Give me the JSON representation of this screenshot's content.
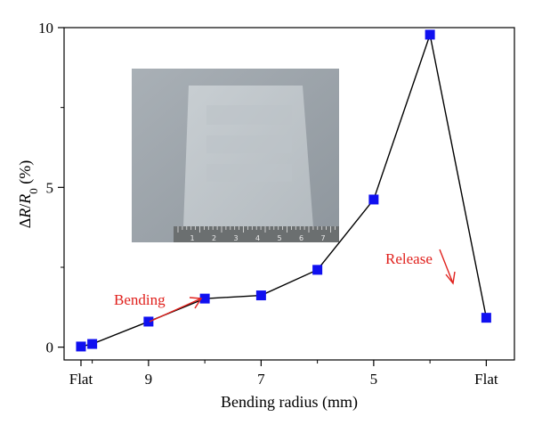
{
  "chart_data": {
    "type": "scatter",
    "xlabel": "Bending radius (mm)",
    "ylabel_parts": {
      "delta": "Δ",
      "r": "R",
      "slash": "/",
      "r0": "R",
      "sub": "0",
      "unit": " (%)"
    },
    "x_ticks": [
      {
        "x": 10.2,
        "label": "Flat"
      },
      {
        "x": 9,
        "label": "9"
      },
      {
        "x": 7,
        "label": "7"
      },
      {
        "x": 5,
        "label": "5"
      },
      {
        "x": 3,
        "label": "Flat"
      }
    ],
    "y_ticks": [
      0,
      5,
      10
    ],
    "xlim": [
      10.5,
      2.5
    ],
    "ylim": [
      -0.4,
      10
    ],
    "series": [
      {
        "color": "#1010f0",
        "points": [
          {
            "x": 10.2,
            "y": 0.02
          },
          {
            "x": 10,
            "y": 0.1
          },
          {
            "x": 9,
            "y": 0.8
          },
          {
            "x": 8,
            "y": 1.52
          },
          {
            "x": 7,
            "y": 1.62
          },
          {
            "x": 6,
            "y": 2.42
          },
          {
            "x": 5,
            "y": 4.62
          },
          {
            "x": 4,
            "y": 9.78
          },
          {
            "x": 3,
            "y": 0.92
          }
        ]
      }
    ],
    "annotations": [
      {
        "text": "Bending",
        "color": "#e0201c"
      },
      {
        "text": "Release",
        "color": "#e0201c"
      }
    ],
    "inset": {
      "kind": "photo",
      "ruler_labels": [
        "1",
        "2",
        "3",
        "4",
        "5",
        "6",
        "7"
      ]
    }
  }
}
